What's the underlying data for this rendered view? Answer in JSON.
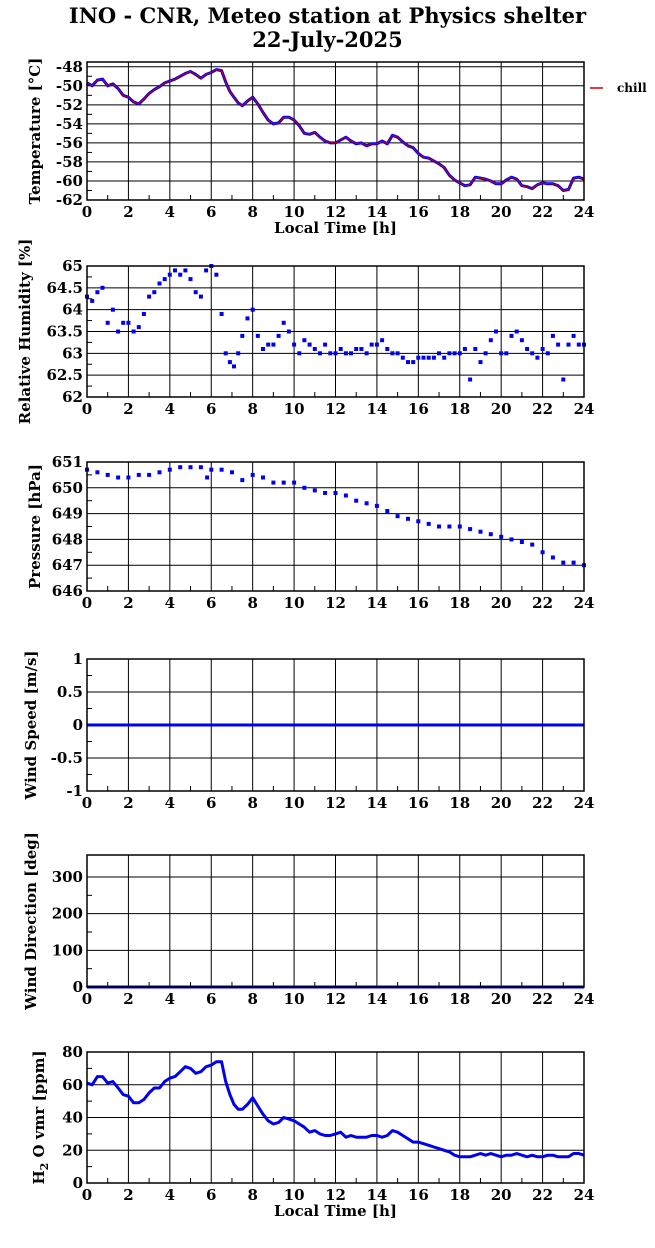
{
  "title": {
    "line1": "INO - CNR, Meteo station at Physics shelter",
    "line2": "22-July-2025"
  },
  "colors": {
    "series": "#0000ee",
    "chill": "#cc0000",
    "grid": "#000000"
  },
  "chart_data": [
    {
      "id": "temperature",
      "type": "line",
      "ylabel": "Temperature [°C]",
      "xlabel": "Local Time [h]",
      "xlim": [
        0,
        24
      ],
      "ylim": [
        -62,
        -47.5
      ],
      "xticks": [
        0,
        2,
        4,
        6,
        8,
        10,
        12,
        14,
        16,
        18,
        20,
        22,
        24
      ],
      "yticks": [
        -62,
        -60,
        -58,
        -56,
        -54,
        -52,
        -50,
        -48
      ],
      "grid": true,
      "legend": {
        "position": "outside-right",
        "entries": [
          "chill"
        ]
      },
      "series": [
        {
          "name": "",
          "x": [
            0,
            0.25,
            0.5,
            0.75,
            1,
            1.25,
            1.5,
            1.75,
            2,
            2.25,
            2.5,
            2.75,
            3,
            3.25,
            3.5,
            3.75,
            4,
            4.25,
            4.5,
            4.75,
            5,
            5.25,
            5.5,
            5.75,
            6,
            6.25,
            6.5,
            6.7,
            6.9,
            7.1,
            7.3,
            7.5,
            7.75,
            8,
            8.25,
            8.5,
            8.75,
            9,
            9.25,
            9.5,
            9.75,
            10,
            10.25,
            10.5,
            10.75,
            11,
            11.25,
            11.5,
            11.75,
            12,
            12.25,
            12.5,
            12.75,
            13,
            13.25,
            13.5,
            13.75,
            14,
            14.25,
            14.5,
            14.75,
            15,
            15.25,
            15.5,
            15.75,
            16,
            16.25,
            16.5,
            16.75,
            17,
            17.25,
            17.5,
            17.75,
            18,
            18.25,
            18.5,
            18.75,
            19,
            19.25,
            19.5,
            19.75,
            20,
            20.25,
            20.5,
            20.75,
            21,
            21.25,
            21.5,
            21.75,
            22,
            22.25,
            22.5,
            22.75,
            23,
            23.25,
            23.5,
            23.75,
            24
          ],
          "y": [
            -49.7,
            -50.0,
            -49.4,
            -49.3,
            -50.0,
            -49.8,
            -50.3,
            -51.0,
            -51.2,
            -51.7,
            -51.9,
            -51.4,
            -50.8,
            -50.4,
            -50.1,
            -49.7,
            -49.5,
            -49.3,
            -49.0,
            -48.7,
            -48.5,
            -48.8,
            -49.2,
            -48.8,
            -48.6,
            -48.3,
            -48.4,
            -49.6,
            -50.6,
            -51.2,
            -51.8,
            -52.1,
            -51.6,
            -51.2,
            -51.9,
            -52.8,
            -53.6,
            -54.0,
            -53.9,
            -53.3,
            -53.3,
            -53.6,
            -54.2,
            -55.0,
            -55.1,
            -54.9,
            -55.4,
            -55.8,
            -56.0,
            -56.0,
            -55.7,
            -55.4,
            -55.8,
            -56.1,
            -56.0,
            -56.3,
            -56.1,
            -56.1,
            -55.8,
            -56.1,
            -55.2,
            -55.4,
            -55.9,
            -56.3,
            -56.5,
            -57.1,
            -57.5,
            -57.6,
            -57.9,
            -58.2,
            -58.6,
            -59.4,
            -59.9,
            -60.2,
            -60.5,
            -60.4,
            -59.6,
            -59.7,
            -59.8,
            -60.0,
            -60.3,
            -60.3,
            -59.9,
            -59.6,
            -59.8,
            -60.5,
            -60.6,
            -60.8,
            -60.4,
            -60.2,
            -60.3,
            -60.3,
            -60.5,
            -61.0,
            -60.9,
            -59.7,
            -59.6,
            -59.8
          ]
        }
      ]
    },
    {
      "id": "humidity",
      "type": "scatter",
      "ylabel": "Relative Humidity [%]",
      "xlim": [
        0,
        24
      ],
      "ylim": [
        62,
        65
      ],
      "xticks": [
        0,
        2,
        4,
        6,
        8,
        10,
        12,
        14,
        16,
        18,
        20,
        22,
        24
      ],
      "yticks": [
        62,
        62.5,
        63,
        63.5,
        64,
        64.5,
        65
      ],
      "grid": true,
      "series": [
        {
          "name": "",
          "x": [
            0,
            0.25,
            0.5,
            0.75,
            1,
            1.25,
            1.5,
            1.75,
            2,
            2.25,
            2.5,
            2.75,
            3,
            3.25,
            3.5,
            3.75,
            4,
            4.25,
            4.5,
            4.75,
            5,
            5.25,
            5.5,
            5.75,
            6,
            6.25,
            6.5,
            6.7,
            6.9,
            7.1,
            7.3,
            7.5,
            7.75,
            8,
            8.25,
            8.5,
            8.75,
            9,
            9.25,
            9.5,
            9.75,
            10,
            10.25,
            10.5,
            10.75,
            11,
            11.25,
            11.5,
            11.75,
            12,
            12.25,
            12.5,
            12.75,
            13,
            13.25,
            13.5,
            13.75,
            14,
            14.25,
            14.5,
            14.75,
            15,
            15.25,
            15.5,
            15.75,
            16,
            16.25,
            16.5,
            16.75,
            17,
            17.25,
            17.5,
            17.75,
            18,
            18.25,
            18.5,
            18.75,
            19,
            19.25,
            19.5,
            19.75,
            20,
            20.25,
            20.5,
            20.75,
            21,
            21.25,
            21.5,
            21.75,
            22,
            22.25,
            22.5,
            22.75,
            23,
            23.25,
            23.5,
            23.75,
            24
          ],
          "y": [
            64.3,
            64.2,
            64.4,
            64.5,
            63.7,
            64.0,
            63.5,
            63.7,
            63.7,
            63.5,
            63.6,
            63.9,
            64.3,
            64.4,
            64.6,
            64.7,
            64.8,
            64.9,
            64.8,
            64.9,
            64.7,
            64.4,
            64.3,
            64.9,
            65.0,
            64.8,
            63.9,
            63.0,
            62.8,
            62.7,
            63.0,
            63.4,
            63.8,
            64.0,
            63.4,
            63.1,
            63.2,
            63.2,
            63.4,
            63.7,
            63.5,
            63.2,
            63.0,
            63.3,
            63.2,
            63.1,
            63.0,
            63.2,
            63.0,
            63.0,
            63.1,
            63.0,
            63.0,
            63.1,
            63.1,
            63.0,
            63.2,
            63.2,
            63.3,
            63.1,
            63.0,
            63.0,
            62.9,
            62.8,
            62.8,
            62.9,
            62.9,
            62.9,
            62.9,
            63.0,
            62.9,
            63.0,
            63.0,
            63.0,
            63.1,
            62.4,
            63.1,
            62.8,
            63.0,
            63.3,
            63.5,
            63.0,
            63.0,
            63.4,
            63.5,
            63.3,
            63.1,
            63.0,
            62.9,
            63.1,
            63.0,
            63.4,
            63.2,
            62.4,
            63.2,
            63.4,
            63.2,
            63.2
          ]
        }
      ]
    },
    {
      "id": "pressure",
      "type": "scatter",
      "ylabel": "Pressure [hPa]",
      "xlim": [
        0,
        24
      ],
      "ylim": [
        646,
        651
      ],
      "xticks": [
        0,
        2,
        4,
        6,
        8,
        10,
        12,
        14,
        16,
        18,
        20,
        22,
        24
      ],
      "yticks": [
        646,
        647,
        648,
        649,
        650,
        651
      ],
      "grid": true,
      "series": [
        {
          "name": "",
          "x": [
            0,
            0.5,
            1,
            1.5,
            2,
            2.5,
            3,
            3.5,
            4,
            4.5,
            5,
            5.5,
            5.8,
            6,
            6.5,
            7,
            7.5,
            8,
            8.5,
            9,
            9.5,
            10,
            10.5,
            11,
            11.5,
            12,
            12.5,
            13,
            13.5,
            14,
            14.5,
            15,
            15.5,
            16,
            16.5,
            17,
            17.5,
            18,
            18.5,
            19,
            19.5,
            20,
            20.5,
            21,
            21.5,
            22,
            22.5,
            23,
            23.5,
            24
          ],
          "y": [
            650.7,
            650.6,
            650.5,
            650.4,
            650.4,
            650.5,
            650.5,
            650.6,
            650.7,
            650.8,
            650.8,
            650.8,
            650.4,
            650.7,
            650.7,
            650.6,
            650.3,
            650.5,
            650.4,
            650.2,
            650.2,
            650.2,
            650.0,
            649.9,
            649.8,
            649.8,
            649.7,
            649.5,
            649.4,
            649.3,
            649.1,
            648.9,
            648.8,
            648.7,
            648.6,
            648.5,
            648.5,
            648.5,
            648.4,
            648.3,
            648.2,
            648.1,
            648.0,
            647.9,
            647.8,
            647.5,
            647.3,
            647.1,
            647.1,
            647.0
          ]
        }
      ]
    },
    {
      "id": "wind-speed",
      "type": "line",
      "ylabel": "Wind Speed [m/s]",
      "xlim": [
        0,
        24
      ],
      "ylim": [
        -1,
        1
      ],
      "xticks": [
        0,
        2,
        4,
        6,
        8,
        10,
        12,
        14,
        16,
        18,
        20,
        22,
        24
      ],
      "yticks": [
        -1,
        -0.5,
        0,
        0.5,
        1
      ],
      "grid": true,
      "series": [
        {
          "name": "",
          "x": [
            0,
            24
          ],
          "y": [
            0,
            0
          ]
        }
      ]
    },
    {
      "id": "wind-direction",
      "type": "line",
      "ylabel": "Wind Direction [deg]",
      "xlim": [
        0,
        24
      ],
      "ylim": [
        0,
        360
      ],
      "xticks": [
        0,
        2,
        4,
        6,
        8,
        10,
        12,
        14,
        16,
        18,
        20,
        22,
        24
      ],
      "yticks": [
        0,
        100,
        200,
        300
      ],
      "grid": true,
      "series": [
        {
          "name": "",
          "x": [
            0,
            24
          ],
          "y": [
            0,
            0
          ]
        }
      ]
    },
    {
      "id": "h2o-vmr",
      "type": "line",
      "ylabel": "H2O vmr [ppm]",
      "xlabel": "Local Time [h]",
      "xlim": [
        0,
        24
      ],
      "ylim": [
        0,
        80
      ],
      "xticks": [
        0,
        2,
        4,
        6,
        8,
        10,
        12,
        14,
        16,
        18,
        20,
        22,
        24
      ],
      "yticks": [
        0,
        20,
        40,
        60,
        80
      ],
      "grid": true,
      "series": [
        {
          "name": "",
          "x": [
            0,
            0.25,
            0.5,
            0.75,
            1,
            1.25,
            1.5,
            1.75,
            2,
            2.25,
            2.5,
            2.75,
            3,
            3.25,
            3.5,
            3.75,
            4,
            4.25,
            4.5,
            4.75,
            5,
            5.25,
            5.5,
            5.75,
            6,
            6.25,
            6.5,
            6.7,
            6.9,
            7.1,
            7.3,
            7.5,
            7.75,
            8,
            8.25,
            8.5,
            8.75,
            9,
            9.25,
            9.5,
            9.75,
            10,
            10.25,
            10.5,
            10.75,
            11,
            11.25,
            11.5,
            11.75,
            12,
            12.25,
            12.5,
            12.75,
            13,
            13.25,
            13.5,
            13.75,
            14,
            14.25,
            14.5,
            14.75,
            15,
            15.25,
            15.5,
            15.75,
            16,
            16.25,
            16.5,
            16.75,
            17,
            17.25,
            17.5,
            17.75,
            18,
            18.25,
            18.5,
            18.75,
            19,
            19.25,
            19.5,
            19.75,
            20,
            20.25,
            20.5,
            20.75,
            21,
            21.25,
            21.5,
            21.75,
            22,
            22.25,
            22.5,
            22.75,
            23,
            23.25,
            23.5,
            23.75,
            24
          ],
          "y": [
            61,
            60,
            65,
            65,
            61,
            62,
            58,
            54,
            53,
            49,
            49,
            51,
            55,
            58,
            58,
            62,
            64,
            65,
            68,
            71,
            70,
            67,
            68,
            71,
            72,
            74,
            74,
            62,
            54,
            48,
            45,
            45,
            48,
            52,
            47,
            42,
            38,
            36,
            37,
            40,
            39,
            38,
            36,
            34,
            31,
            32,
            30,
            29,
            29,
            30,
            31,
            28,
            29,
            28,
            28,
            28,
            29,
            29,
            28,
            29,
            32,
            31,
            29,
            27,
            25,
            25,
            24,
            23,
            22,
            21,
            20,
            19,
            17,
            16,
            16,
            16,
            17,
            18,
            17,
            18,
            17,
            16,
            17,
            17,
            18,
            17,
            16,
            17,
            16,
            16,
            17,
            17,
            16,
            16,
            16,
            18,
            18,
            17
          ]
        }
      ]
    }
  ]
}
